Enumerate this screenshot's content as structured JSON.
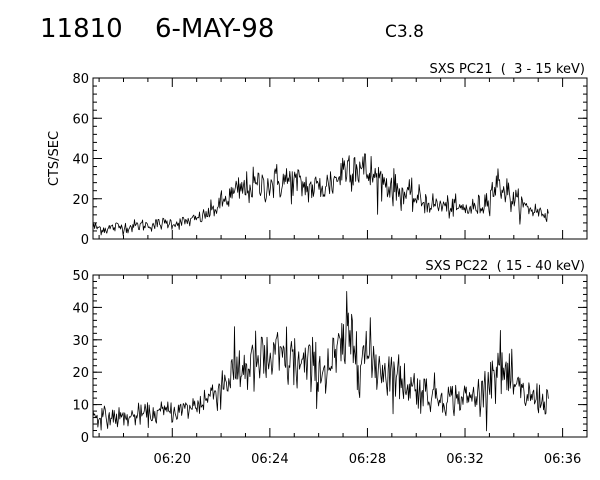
{
  "header": {
    "event_id": "11810",
    "date": "6-MAY-98",
    "goes_class": "C3.8"
  },
  "chart_data": [
    {
      "type": "line",
      "title": "SXS PC21  (  3 - 15 keV)",
      "ylabel": "CTS/SEC",
      "xlabel": "",
      "xlim": [
        "06:16:45",
        "06:37:00"
      ],
      "ylim": [
        0,
        80
      ],
      "yticks": [
        0,
        20,
        40,
        60,
        80
      ],
      "xticks": [
        "06:20",
        "06:24",
        "06:28",
        "06:32",
        "06:36"
      ],
      "xtick_labels_shown": false,
      "data_end": "06:35:25",
      "series": [
        {
          "x": [
            "06:16:45",
            "06:17:15",
            "06:17:45",
            "06:18:15",
            "06:18:45",
            "06:19:15",
            "06:19:45",
            "06:20:15",
            "06:20:45",
            "06:21:15",
            "06:21:45",
            "06:22:15",
            "06:22:45",
            "06:23:15",
            "06:23:45",
            "06:24:15",
            "06:24:45",
            "06:25:15",
            "06:25:45",
            "06:26:15",
            "06:26:45",
            "06:27:05",
            "06:27:25",
            "06:27:45",
            "06:28:15",
            "06:28:45",
            "06:29:15",
            "06:29:45",
            "06:30:15",
            "06:30:45",
            "06:31:15",
            "06:31:45",
            "06:32:15",
            "06:32:45",
            "06:33:05",
            "06:33:25",
            "06:33:55",
            "06:34:25",
            "06:34:55",
            "06:35:25"
          ],
          "values": [
            6,
            5,
            6,
            6,
            7,
            7,
            8,
            8,
            9,
            11,
            15,
            20,
            24,
            26,
            27,
            28,
            29,
            27,
            25,
            26,
            30,
            36,
            38,
            35,
            31,
            28,
            24,
            21,
            19,
            17,
            16,
            15,
            15,
            17,
            24,
            28,
            20,
            16,
            14,
            12
          ]
        }
      ]
    },
    {
      "type": "line",
      "title": "SXS PC22  ( 15 - 40 keV)",
      "ylabel": "",
      "xlabel": "",
      "xlim": [
        "06:16:45",
        "06:37:00"
      ],
      "ylim": [
        0,
        50
      ],
      "yticks": [
        0,
        10,
        20,
        30,
        40,
        50
      ],
      "xticks": [
        "06:20",
        "06:24",
        "06:28",
        "06:32",
        "06:36"
      ],
      "xtick_labels_shown": true,
      "data_end": "06:35:25",
      "series": [
        {
          "x": [
            "06:16:45",
            "06:17:15",
            "06:17:45",
            "06:18:15",
            "06:18:45",
            "06:19:15",
            "06:19:45",
            "06:20:15",
            "06:20:45",
            "06:21:15",
            "06:21:45",
            "06:22:15",
            "06:22:45",
            "06:23:15",
            "06:23:45",
            "06:24:15",
            "06:24:45",
            "06:25:15",
            "06:25:45",
            "06:26:15",
            "06:26:45",
            "06:27:05",
            "06:27:25",
            "06:27:45",
            "06:28:15",
            "06:28:45",
            "06:29:15",
            "06:29:45",
            "06:30:15",
            "06:30:45",
            "06:31:15",
            "06:31:45",
            "06:32:15",
            "06:32:45",
            "06:33:05",
            "06:33:25",
            "06:33:55",
            "06:34:25",
            "06:34:55",
            "06:35:25"
          ],
          "values": [
            7,
            6,
            6,
            6,
            7,
            7,
            8,
            8,
            9,
            11,
            14,
            18,
            21,
            22,
            23,
            24,
            24,
            22,
            21,
            21,
            24,
            29,
            30,
            27,
            23,
            21,
            18,
            16,
            14,
            13,
            12,
            12,
            12,
            14,
            20,
            22,
            16,
            13,
            12,
            11
          ]
        }
      ]
    }
  ]
}
